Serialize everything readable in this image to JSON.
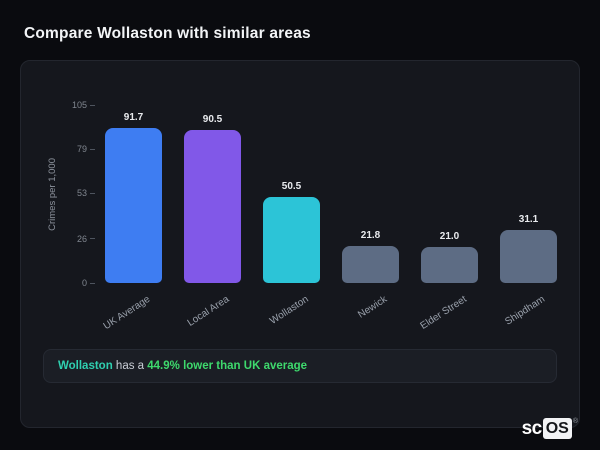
{
  "header": {
    "title": "Compare Wollaston with similar areas"
  },
  "chart_data": {
    "type": "bar",
    "title": "Compare Wollaston with similar areas",
    "xlabel": "",
    "ylabel": "Crimes per 1,000",
    "ylim": [
      0,
      105
    ],
    "yticks": [
      105,
      79,
      53,
      26,
      0
    ],
    "grid": "off",
    "legend": "none",
    "categories": [
      "UK Average",
      "Local Area",
      "Wollaston",
      "Newick",
      "Elder Street",
      "Shipdham"
    ],
    "values": [
      91.7,
      90.5,
      50.5,
      21.8,
      21.0,
      31.1
    ],
    "value_labels": [
      "91.7",
      "90.5",
      "50.5",
      "21.8",
      "21.0",
      "31.1"
    ],
    "bar_colors": [
      "#3e7df2",
      "#8158e8",
      "#2cc4d7",
      "#5d6c84",
      "#5d6c84",
      "#5d6c84"
    ]
  },
  "note": {
    "area": "Wollaston",
    "connector": " has a ",
    "stat": "44.9% lower than UK average"
  },
  "logo": {
    "prefix": "sc",
    "boxed": "OS",
    "registered": "®"
  },
  "colors": {
    "background": "#0a0b0f",
    "card_background": "#15171d",
    "area_highlight": "#2fd0b0",
    "stat_highlight": "#3ed96d",
    "bar_default": "#5d6c84",
    "bar_uk_average": "#3e7df2",
    "bar_local_area": "#8158e8",
    "bar_wollaston": "#2cc4d7"
  }
}
